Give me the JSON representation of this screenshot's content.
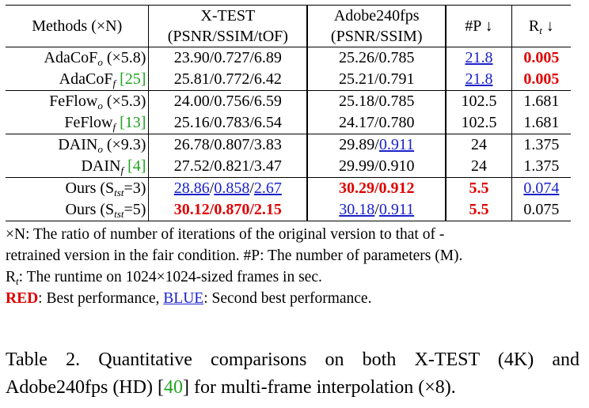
{
  "header": {
    "methods": "Methods (×N)",
    "xtest_title": "X-TEST",
    "xtest_sub": "(PSNR/SSIM/tOF)",
    "adobe_title": "Adobe240fps",
    "adobe_sub": "(PSNR/SSIM)",
    "params": "#P ↓",
    "runtime_R": "R",
    "runtime_sub": "t",
    "runtime_arrow": " ↓"
  },
  "rows": [
    {
      "name": "AdaCoF",
      "sub": "o",
      "suffix": " (×5.8)",
      "ref": "",
      "x1": "23.90",
      "x2": "0.727",
      "x3": "6.89",
      "a1": "25.26",
      "a2": "0.785",
      "p": "21.8",
      "rt": "0.005"
    },
    {
      "name": "AdaCoF",
      "sub": "f",
      "suffix": " ",
      "ref": "[25]",
      "x1": "25.81",
      "x2": "0.772",
      "x3": "6.42",
      "a1": "25.21",
      "a2": "0.791",
      "p": "21.8",
      "rt": "0.005"
    },
    {
      "name": "FeFlow",
      "sub": "o",
      "suffix": " (×5.3)",
      "ref": "",
      "x1": "24.00",
      "x2": "0.756",
      "x3": "6.59",
      "a1": "25.18",
      "a2": "0.785",
      "p": "102.5",
      "rt": "1.681"
    },
    {
      "name": "FeFlow",
      "sub": "f",
      "suffix": " ",
      "ref": "[13]",
      "x1": "25.16",
      "x2": "0.783",
      "x3": "6.54",
      "a1": "24.17",
      "a2": "0.780",
      "p": "102.5",
      "rt": "1.681"
    },
    {
      "name": "DAIN",
      "sub": "o",
      "suffix": " (×9.3)",
      "ref": "",
      "x1": "26.78",
      "x2": "0.807",
      "x3": "3.83",
      "a1": "29.89",
      "a2": "0.911",
      "p": "24",
      "rt": "1.375"
    },
    {
      "name": "DAIN",
      "sub": "f",
      "suffix": " ",
      "ref": "[4]",
      "x1": "27.52",
      "x2": "0.821",
      "x3": "3.47",
      "a1": "29.99",
      "a2": "0.910",
      "p": "24",
      "rt": "1.375"
    },
    {
      "name": "Ours (S",
      "sub": "tst",
      "suffix": "=3)",
      "ref": "",
      "x1": "28.86",
      "x2": "0.858",
      "x3": "2.67",
      "a1": "30.29",
      "a2": "0.912",
      "p": "5.5",
      "rt": "0.074"
    },
    {
      "name": "Ours (S",
      "sub": "tst",
      "suffix": "=5)",
      "ref": "",
      "x1": "30.12",
      "x2": "0.870",
      "x3": "2.15",
      "a1": "30.18",
      "a2": "0.911",
      "p": "5.5",
      "rt": "0.075"
    }
  ],
  "slash": "/",
  "notes": {
    "line1": "×N: The ratio of number of iterations of the original version to that of -",
    "line2": "retrained version in the fair condition.   #P: The number of parameters (M).",
    "line3_R": "R",
    "line3_sub": "t",
    "line3_rest": ": The runtime on 1024×1024-sized frames in sec.",
    "red_word": "RED",
    "red_rest": ": Best performance, ",
    "blue_word": "BLUE",
    "blue_rest": ": Second best performance."
  },
  "caption": {
    "line1": "Table 2. Quantitative comparisons on both X-TEST (4K) and",
    "line2_a": "Adobe240fps (HD) [",
    "line2_ref": "40",
    "line2_b": "] for multi-frame interpolation (×8)."
  },
  "colors": {
    "best": "#e00000",
    "second": "#1a22c9",
    "citation": "#1fa31f"
  }
}
